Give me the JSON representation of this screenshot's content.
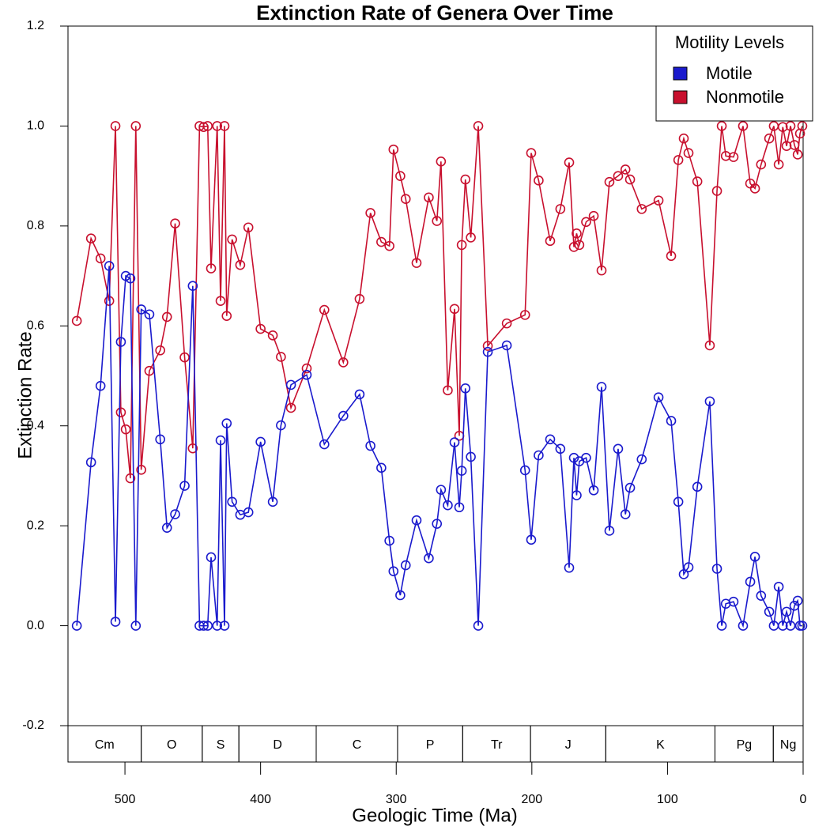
{
  "chart_data": {
    "type": "line",
    "title": "Extinction Rate of Genera Over Time",
    "x_label": "Geologic Time (Ma)",
    "y_label": "Extinction Rate",
    "legend_title": "Motility Levels",
    "legend_position": "top-right",
    "x": [
      535.5,
      525,
      518,
      511.6,
      507,
      503,
      499.4,
      496,
      492,
      488,
      482,
      474,
      469,
      463,
      456,
      450,
      445,
      442,
      439,
      436.5,
      432,
      429.5,
      426.6,
      425,
      421,
      415,
      409,
      400,
      391,
      385,
      377.6,
      366,
      353,
      339,
      327,
      319,
      311,
      305,
      302,
      297,
      293,
      285,
      276,
      270,
      267,
      262,
      257,
      253.5,
      251.7,
      249,
      245,
      239.5,
      232.5,
      218.5,
      205,
      200.5,
      195,
      186.5,
      179,
      172.5,
      169,
      167,
      165,
      160,
      154.4,
      148.6,
      142.8,
      136.4,
      131,
      127.6,
      119,
      106.6,
      97.3,
      92,
      88,
      84.5,
      78,
      68.8,
      63.5,
      60,
      57,
      51.3,
      44.3,
      39,
      35.5,
      31,
      25,
      21.6,
      18,
      15,
      12.2,
      9.3,
      6.4,
      4,
      2.3,
      0.6
    ],
    "series": [
      {
        "name": "Motile",
        "color": "#1a1acd",
        "values": [
          0.0,
          0.327,
          0.48,
          0.72,
          0.008,
          0.568,
          0.7,
          0.695,
          0.0,
          0.633,
          0.623,
          0.373,
          0.196,
          0.223,
          0.28,
          0.68,
          0.0,
          0.0,
          0.0,
          0.137,
          0.0,
          0.371,
          0.0,
          0.405,
          0.248,
          0.222,
          0.227,
          0.368,
          0.248,
          0.401,
          0.482,
          0.502,
          0.363,
          0.42,
          0.463,
          0.36,
          0.316,
          0.17,
          0.109,
          0.061,
          0.121,
          0.211,
          0.135,
          0.204,
          0.272,
          0.241,
          0.367,
          0.237,
          0.31,
          0.475,
          0.338,
          0.0,
          0.548,
          0.561,
          0.311,
          0.172,
          0.341,
          0.373,
          0.354,
          0.116,
          0.336,
          0.261,
          0.329,
          0.336,
          0.271,
          0.478,
          0.19,
          0.354,
          0.223,
          0.276,
          0.333,
          0.457,
          0.41,
          0.248,
          0.103,
          0.117,
          0.278,
          0.449,
          0.114,
          0.0,
          0.044,
          0.048,
          0.0,
          0.088,
          0.138,
          0.06,
          0.028,
          0.0,
          0.078,
          0.0,
          0.028,
          0.0,
          0.04,
          0.05,
          0.0,
          0.0
        ]
      },
      {
        "name": "Nonmotile",
        "color": "#c8102e",
        "values": [
          0.61,
          0.775,
          0.735,
          0.65,
          1.0,
          0.427,
          0.393,
          0.295,
          1.0,
          0.312,
          0.51,
          0.551,
          0.618,
          0.805,
          0.537,
          0.355,
          1.0,
          0.998,
          1.0,
          0.715,
          1.0,
          0.65,
          1.0,
          0.62,
          0.773,
          0.722,
          0.797,
          0.594,
          0.581,
          0.538,
          0.436,
          0.515,
          0.632,
          0.527,
          0.654,
          0.826,
          0.768,
          0.76,
          0.953,
          0.9,
          0.854,
          0.726,
          0.857,
          0.81,
          0.929,
          0.471,
          0.634,
          0.38,
          0.762,
          0.893,
          0.777,
          1.0,
          0.56,
          0.605,
          0.622,
          0.946,
          0.891,
          0.77,
          0.834,
          0.927,
          0.758,
          0.785,
          0.762,
          0.808,
          0.82,
          0.711,
          0.888,
          0.9,
          0.913,
          0.893,
          0.834,
          0.851,
          0.74,
          0.932,
          0.975,
          0.946,
          0.889,
          0.561,
          0.87,
          1.0,
          0.94,
          0.938,
          1.0,
          0.885,
          0.875,
          0.923,
          0.975,
          1.0,
          0.923,
          0.998,
          0.96,
          1.0,
          0.962,
          0.943,
          0.985,
          1.0
        ]
      }
    ],
    "xlim": [
      542,
      0
    ],
    "ylim": [
      -0.2,
      1.2
    ],
    "xticks": [
      500,
      400,
      300,
      200,
      100,
      0
    ],
    "yticks": [
      -0.2,
      {
        "value": 0,
        "label": "0.0"
      },
      0.2,
      0.4,
      0.6,
      0.8,
      {
        "value": 1,
        "label": "1.0"
      },
      1.2
    ],
    "periods": {
      "names": [
        "Cm",
        "O",
        "S",
        "D",
        "C",
        "P",
        "Tr",
        "J",
        "K",
        "Pg",
        "Ng"
      ],
      "bounds": [
        542,
        488,
        443,
        416,
        359,
        299,
        251,
        201,
        145.5,
        65,
        22,
        0
      ]
    }
  }
}
